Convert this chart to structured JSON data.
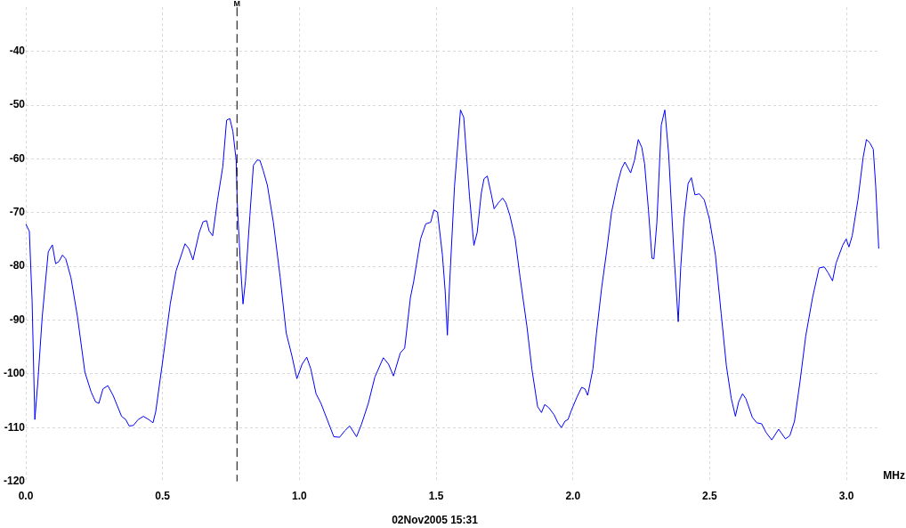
{
  "chart_data": {
    "type": "line",
    "xlabel": "MHz",
    "annotations": [
      "02Nov2005 15:31"
    ],
    "xlim": [
      0,
      3.12
    ],
    "ylim": [
      -120,
      -31.8
    ],
    "xticks": [
      {
        "value": 0,
        "label": "0.0"
      },
      {
        "value": 0.5,
        "label": "0.5"
      },
      {
        "value": 1,
        "label": "1.0"
      },
      {
        "value": 1.5,
        "label": "1.5"
      },
      {
        "value": 2,
        "label": "2.0"
      },
      {
        "value": 2.5,
        "label": "2.5"
      },
      {
        "value": 3,
        "label": "3.0"
      }
    ],
    "yticks": [
      -120,
      -110,
      -100,
      -90,
      -80,
      -70,
      -60,
      -50,
      -40
    ],
    "grid": true,
    "legend": false,
    "marker": "none",
    "ref_lines": [
      {
        "axis": "x",
        "value": 0.772,
        "label": "M",
        "color": "#000000",
        "line_style": "dashed"
      }
    ],
    "series": [
      {
        "color": "#0000ff",
        "x": [
          0,
          0.013,
          0.023,
          0.033,
          0.044,
          0.06,
          0.082,
          0.097,
          0.109,
          0.121,
          0.134,
          0.146,
          0.165,
          0.189,
          0.216,
          0.239,
          0.255,
          0.267,
          0.282,
          0.3,
          0.319,
          0.35,
          0.365,
          0.378,
          0.393,
          0.411,
          0.43,
          0.449,
          0.465,
          0.475,
          0.498,
          0.528,
          0.549,
          0.582,
          0.596,
          0.611,
          0.634,
          0.648,
          0.661,
          0.67,
          0.683,
          0.701,
          0.72,
          0.734,
          0.746,
          0.757,
          0.769,
          0.773,
          0.784,
          0.794,
          0.803,
          0.819,
          0.832,
          0.846,
          0.856,
          0.868,
          0.883,
          0.905,
          0.93,
          0.952,
          0.973,
          0.991,
          1.01,
          1.027,
          1.042,
          1.061,
          1.079,
          1.104,
          1.126,
          1.147,
          1.166,
          1.184,
          1.209,
          1.227,
          1.252,
          1.276,
          1.307,
          1.326,
          1.344,
          1.369,
          1.385,
          1.406,
          1.418,
          1.443,
          1.462,
          1.48,
          1.492,
          1.505,
          1.523,
          1.533,
          1.541,
          1.548,
          1.567,
          1.589,
          1.601,
          1.622,
          1.638,
          1.65,
          1.665,
          1.675,
          1.687,
          1.702,
          1.712,
          1.727,
          1.743,
          1.755,
          1.77,
          1.789,
          1.807,
          1.832,
          1.85,
          1.871,
          1.885,
          1.897,
          1.912,
          1.931,
          1.945,
          1.958,
          1.971,
          1.982,
          1.995,
          2.015,
          2.032,
          2.044,
          2.054,
          2.073,
          2.086,
          2.105,
          2.123,
          2.141,
          2.163,
          2.178,
          2.19,
          2.211,
          2.225,
          2.239,
          2.252,
          2.262,
          2.276,
          2.289,
          2.296,
          2.307,
          2.323,
          2.336,
          2.35,
          2.369,
          2.385,
          2.394,
          2.406,
          2.421,
          2.433,
          2.446,
          2.462,
          2.48,
          2.499,
          2.521,
          2.542,
          2.561,
          2.579,
          2.594,
          2.606,
          2.62,
          2.632,
          2.656,
          2.672,
          2.69,
          2.706,
          2.727,
          2.752,
          2.777,
          2.793,
          2.81,
          2.83,
          2.851,
          2.876,
          2.9,
          2.919,
          2.933,
          2.949,
          2.962,
          2.986,
          2.999,
          3.009,
          3.021,
          3.042,
          3.061,
          3.073,
          3.085,
          3.098,
          3.107,
          3.118
        ],
        "values": [
          -72.1,
          -73.5,
          -86.4,
          -108.5,
          -101.5,
          -89.4,
          -77.3,
          -76,
          -79.5,
          -79.1,
          -77.9,
          -78.6,
          -82.1,
          -89.4,
          -99.7,
          -103.4,
          -105.2,
          -105.5,
          -102.8,
          -102.2,
          -104,
          -107.9,
          -108.5,
          -109.7,
          -109.6,
          -108.5,
          -107.9,
          -108.5,
          -109.1,
          -107,
          -98.5,
          -87,
          -80.9,
          -75.8,
          -76.7,
          -78.8,
          -73.7,
          -71.7,
          -71.5,
          -73.4,
          -74.3,
          -67.6,
          -61.5,
          -52.8,
          -52.5,
          -54.9,
          -60.3,
          -68.2,
          -79.1,
          -87,
          -82.7,
          -70.6,
          -61.2,
          -60.2,
          -60.3,
          -62.2,
          -64.9,
          -71.8,
          -82.1,
          -92.4,
          -96.7,
          -100.9,
          -98.2,
          -96.9,
          -99.1,
          -103.7,
          -105.5,
          -108.8,
          -111.7,
          -111.8,
          -110.6,
          -109.7,
          -111.7,
          -109.4,
          -105.5,
          -100.6,
          -97,
          -98.2,
          -100.4,
          -96.1,
          -95.2,
          -85.8,
          -82.8,
          -74.9,
          -72.1,
          -71.8,
          -69.5,
          -69.9,
          -77.9,
          -84.6,
          -92.8,
          -84.6,
          -65.2,
          -50.9,
          -52.3,
          -67,
          -76.1,
          -73.7,
          -66.4,
          -63.7,
          -63.2,
          -66.7,
          -69.3,
          -68.2,
          -67.3,
          -68.2,
          -70.6,
          -74.9,
          -82.1,
          -91.2,
          -99.1,
          -106.1,
          -107.2,
          -105.7,
          -106.3,
          -107.6,
          -109.1,
          -110,
          -108.8,
          -108.5,
          -106.7,
          -104.3,
          -102.5,
          -102.8,
          -104,
          -99.1,
          -92.5,
          -84,
          -77.3,
          -70,
          -64.6,
          -61.8,
          -60.6,
          -62.6,
          -60.3,
          -56.4,
          -57.9,
          -60.9,
          -69.4,
          -78.5,
          -78.6,
          -71.8,
          -53.7,
          -50.9,
          -59.1,
          -77.3,
          -90.3,
          -80.3,
          -71.2,
          -64.6,
          -63.5,
          -66.7,
          -66.5,
          -67.6,
          -71.2,
          -77.9,
          -88.8,
          -98.5,
          -104.6,
          -107.9,
          -105.2,
          -103.7,
          -104.6,
          -108.1,
          -109.1,
          -109.3,
          -110.9,
          -112.3,
          -110.3,
          -112.1,
          -111.5,
          -108.8,
          -101.5,
          -93,
          -85.8,
          -80.3,
          -80.1,
          -81.2,
          -82.7,
          -79.4,
          -76.1,
          -74.9,
          -76.4,
          -74.3,
          -67.6,
          -59.7,
          -56.4,
          -57,
          -58.2,
          -65.2,
          -76.7
        ]
      }
    ]
  }
}
